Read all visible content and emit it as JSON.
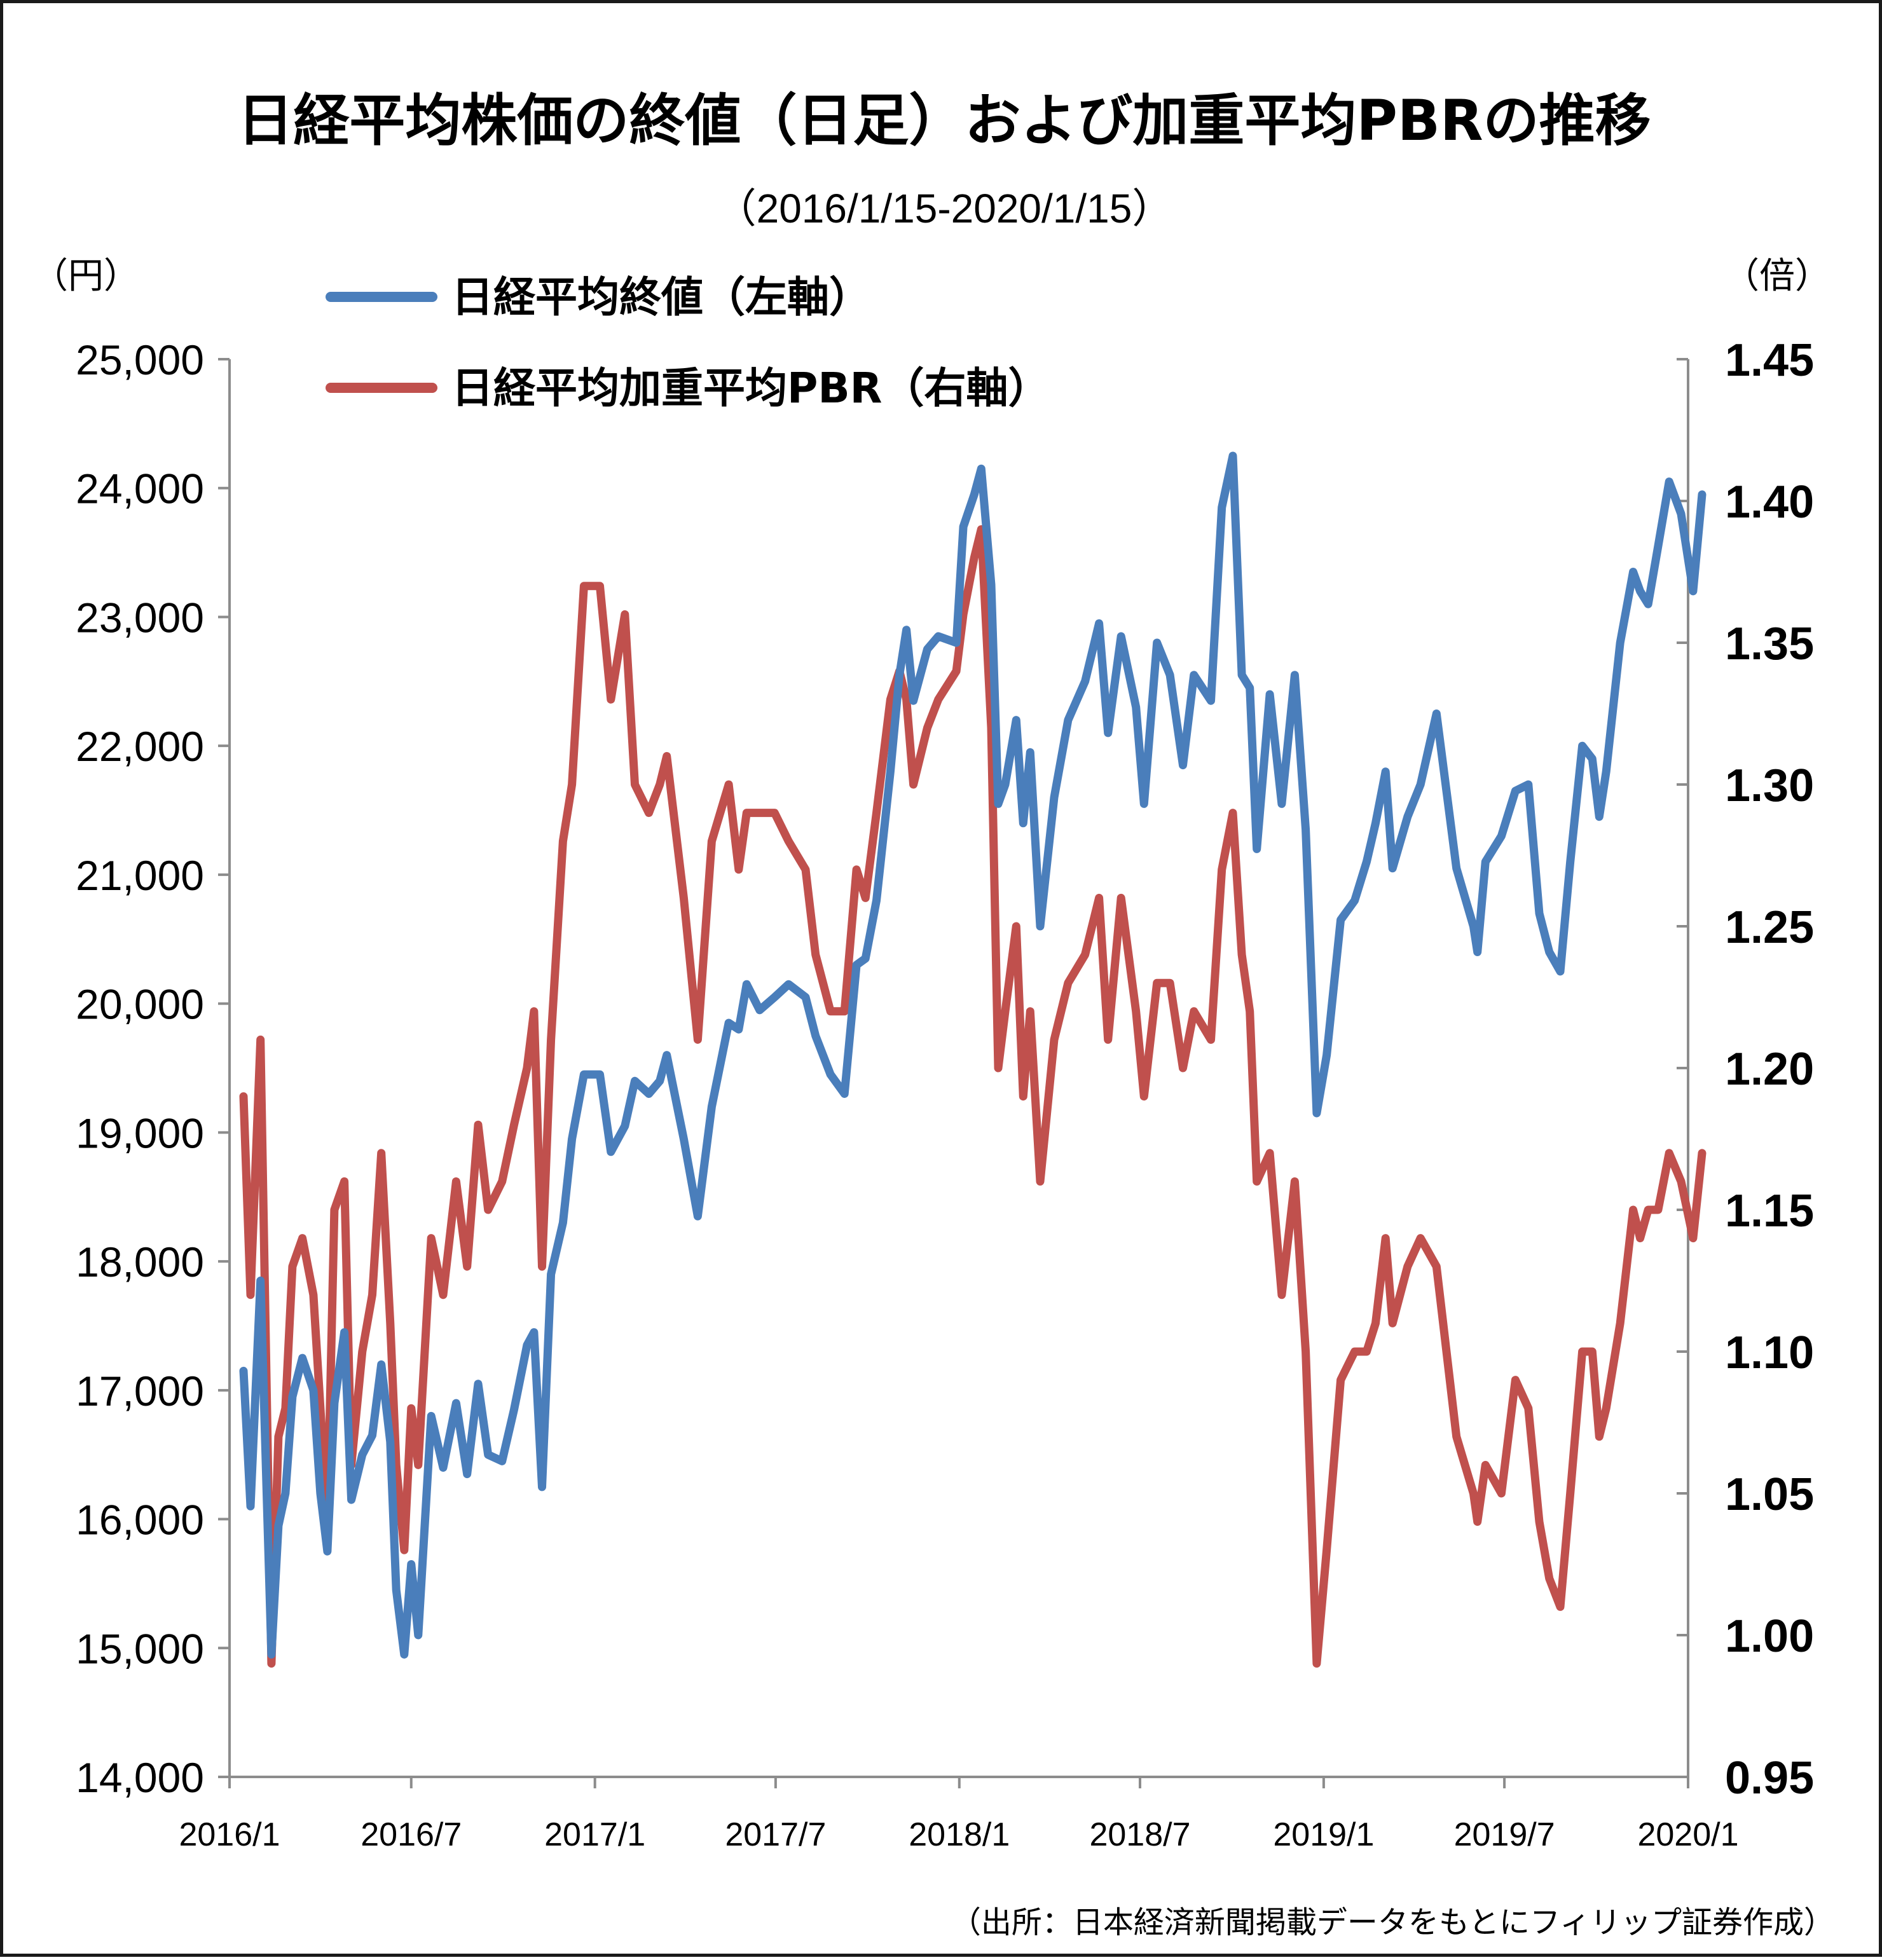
{
  "chart_data": {
    "type": "line",
    "title": "日経平均株価の終値（日足）および加重平均PBRの推移",
    "subtitle": "（2016/1/15-2020/1/15）",
    "source": "（出所：日本経済新聞掲載データをもとにフィリップ証券作成）",
    "y_left": {
      "unit": "（円）",
      "ylim": [
        14000,
        25000
      ],
      "ticks": [
        "14,000",
        "15,000",
        "16,000",
        "17,000",
        "18,000",
        "19,000",
        "20,000",
        "21,000",
        "22,000",
        "23,000",
        "24,000",
        "25,000"
      ]
    },
    "y_right": {
      "unit": "（倍）",
      "ylim": [
        0.95,
        1.45
      ],
      "ticks": [
        "0.95",
        "1.00",
        "1.05",
        "1.10",
        "1.15",
        "1.20",
        "1.25",
        "1.30",
        "1.35",
        "1.40",
        "1.45"
      ]
    },
    "x_axis": {
      "range": [
        "2016-01",
        "2020-01"
      ],
      "ticks": [
        "2016/1",
        "2016/7",
        "2017/1",
        "2017/7",
        "2018/1",
        "2018/7",
        "2019/1",
        "2019/7",
        "2020/1"
      ]
    },
    "grid": false,
    "legend_position": "top-left",
    "series": [
      {
        "name": "日経平均終値（左軸）",
        "color": "#4a7ebb",
        "axis": "left",
        "points": [
          [
            "2016-01-15",
            17150
          ],
          [
            "2016-01-22",
            16100
          ],
          [
            "2016-02-01",
            17850
          ],
          [
            "2016-02-12",
            14950
          ],
          [
            "2016-02-19",
            15950
          ],
          [
            "2016-02-26",
            16200
          ],
          [
            "2016-03-04",
            16950
          ],
          [
            "2016-03-14",
            17250
          ],
          [
            "2016-03-25",
            17000
          ],
          [
            "2016-04-01",
            16200
          ],
          [
            "2016-04-08",
            15750
          ],
          [
            "2016-04-15",
            16900
          ],
          [
            "2016-04-25",
            17450
          ],
          [
            "2016-05-02",
            16150
          ],
          [
            "2016-05-13",
            16500
          ],
          [
            "2016-05-23",
            16650
          ],
          [
            "2016-06-01",
            17200
          ],
          [
            "2016-06-10",
            16600
          ],
          [
            "2016-06-16",
            15450
          ],
          [
            "2016-06-24",
            14950
          ],
          [
            "2016-07-01",
            15650
          ],
          [
            "2016-07-08",
            15100
          ],
          [
            "2016-07-21",
            16800
          ],
          [
            "2016-08-02",
            16400
          ],
          [
            "2016-08-15",
            16900
          ],
          [
            "2016-08-26",
            16350
          ],
          [
            "2016-09-06",
            17050
          ],
          [
            "2016-09-16",
            16500
          ],
          [
            "2016-09-30",
            16450
          ],
          [
            "2016-10-12",
            16850
          ],
          [
            "2016-10-25",
            17350
          ],
          [
            "2016-11-01",
            17450
          ],
          [
            "2016-11-09",
            16250
          ],
          [
            "2016-11-18",
            17900
          ],
          [
            "2016-11-30",
            18300
          ],
          [
            "2016-12-09",
            18950
          ],
          [
            "2016-12-21",
            19450
          ],
          [
            "2017-01-06",
            19450
          ],
          [
            "2017-01-17",
            18850
          ],
          [
            "2017-01-31",
            19050
          ],
          [
            "2017-02-10",
            19400
          ],
          [
            "2017-02-24",
            19300
          ],
          [
            "2017-03-07",
            19400
          ],
          [
            "2017-03-14",
            19600
          ],
          [
            "2017-03-31",
            18950
          ],
          [
            "2017-04-14",
            18350
          ],
          [
            "2017-04-28",
            19200
          ],
          [
            "2017-05-15",
            19850
          ],
          [
            "2017-05-25",
            19800
          ],
          [
            "2017-06-02",
            20150
          ],
          [
            "2017-06-15",
            19950
          ],
          [
            "2017-06-30",
            20050
          ],
          [
            "2017-07-14",
            20150
          ],
          [
            "2017-07-31",
            20050
          ],
          [
            "2017-08-10",
            19750
          ],
          [
            "2017-08-25",
            19450
          ],
          [
            "2017-09-08",
            19300
          ],
          [
            "2017-09-20",
            20300
          ],
          [
            "2017-09-29",
            20350
          ],
          [
            "2017-10-10",
            20800
          ],
          [
            "2017-10-24",
            21800
          ],
          [
            "2017-11-02",
            22550
          ],
          [
            "2017-11-09",
            22900
          ],
          [
            "2017-11-16",
            22350
          ],
          [
            "2017-11-30",
            22750
          ],
          [
            "2017-12-11",
            22850
          ],
          [
            "2017-12-29",
            22800
          ],
          [
            "2018-01-05",
            23700
          ],
          [
            "2018-01-16",
            23950
          ],
          [
            "2018-01-23",
            24150
          ],
          [
            "2018-02-02",
            23250
          ],
          [
            "2018-02-09",
            21550
          ],
          [
            "2018-02-16",
            21700
          ],
          [
            "2018-02-27",
            22200
          ],
          [
            "2018-03-06",
            21400
          ],
          [
            "2018-03-13",
            21950
          ],
          [
            "2018-03-23",
            20600
          ],
          [
            "2018-04-06",
            21600
          ],
          [
            "2018-04-20",
            22200
          ],
          [
            "2018-05-07",
            22500
          ],
          [
            "2018-05-21",
            22950
          ],
          [
            "2018-05-30",
            22100
          ],
          [
            "2018-06-12",
            22850
          ],
          [
            "2018-06-27",
            22300
          ],
          [
            "2018-07-05",
            21550
          ],
          [
            "2018-07-18",
            22800
          ],
          [
            "2018-07-31",
            22550
          ],
          [
            "2018-08-13",
            21850
          ],
          [
            "2018-08-24",
            22550
          ],
          [
            "2018-09-10",
            22350
          ],
          [
            "2018-09-21",
            23850
          ],
          [
            "2018-10-02",
            24250
          ],
          [
            "2018-10-11",
            22550
          ],
          [
            "2018-10-19",
            22450
          ],
          [
            "2018-10-26",
            21200
          ],
          [
            "2018-11-08",
            22400
          ],
          [
            "2018-11-20",
            21550
          ],
          [
            "2018-12-03",
            22550
          ],
          [
            "2018-12-14",
            21350
          ],
          [
            "2018-12-25",
            19150
          ],
          [
            "2019-01-04",
            19600
          ],
          [
            "2019-01-18",
            20650
          ],
          [
            "2019-02-01",
            20800
          ],
          [
            "2019-02-13",
            21100
          ],
          [
            "2019-02-22",
            21400
          ],
          [
            "2019-03-04",
            21800
          ],
          [
            "2019-03-11",
            21050
          ],
          [
            "2019-03-26",
            21450
          ],
          [
            "2019-04-08",
            21700
          ],
          [
            "2019-04-24",
            22250
          ],
          [
            "2019-05-14",
            21050
          ],
          [
            "2019-05-31",
            20600
          ],
          [
            "2019-06-04",
            20400
          ],
          [
            "2019-06-12",
            21100
          ],
          [
            "2019-06-28",
            21300
          ],
          [
            "2019-07-12",
            21650
          ],
          [
            "2019-07-25",
            21700
          ],
          [
            "2019-08-05",
            20700
          ],
          [
            "2019-08-15",
            20400
          ],
          [
            "2019-08-26",
            20250
          ],
          [
            "2019-09-05",
            21100
          ],
          [
            "2019-09-17",
            22000
          ],
          [
            "2019-09-27",
            21900
          ],
          [
            "2019-10-04",
            21450
          ],
          [
            "2019-10-11",
            21800
          ],
          [
            "2019-10-25",
            22800
          ],
          [
            "2019-11-07",
            23350
          ],
          [
            "2019-11-14",
            23200
          ],
          [
            "2019-11-22",
            23100
          ],
          [
            "2019-12-02",
            23550
          ],
          [
            "2019-12-13",
            24050
          ],
          [
            "2019-12-25",
            23800
          ],
          [
            "2020-01-06",
            23200
          ],
          [
            "2020-01-15",
            23950
          ]
        ]
      },
      {
        "name": "日経平均加重平均PBR（右軸）",
        "color": "#c0504d",
        "axis": "right",
        "points": [
          [
            "2016-01-15",
            1.19
          ],
          [
            "2016-01-22",
            1.12
          ],
          [
            "2016-02-01",
            1.21
          ],
          [
            "2016-02-12",
            0.99
          ],
          [
            "2016-02-19",
            1.07
          ],
          [
            "2016-02-26",
            1.08
          ],
          [
            "2016-03-04",
            1.13
          ],
          [
            "2016-03-14",
            1.14
          ],
          [
            "2016-03-25",
            1.12
          ],
          [
            "2016-04-01",
            1.08
          ],
          [
            "2016-04-08",
            1.04
          ],
          [
            "2016-04-15",
            1.15
          ],
          [
            "2016-04-25",
            1.16
          ],
          [
            "2016-05-02",
            1.06
          ],
          [
            "2016-05-13",
            1.1
          ],
          [
            "2016-05-23",
            1.12
          ],
          [
            "2016-06-01",
            1.17
          ],
          [
            "2016-06-10",
            1.11
          ],
          [
            "2016-06-16",
            1.06
          ],
          [
            "2016-06-24",
            1.03
          ],
          [
            "2016-07-01",
            1.08
          ],
          [
            "2016-07-08",
            1.06
          ],
          [
            "2016-07-21",
            1.14
          ],
          [
            "2016-08-02",
            1.12
          ],
          [
            "2016-08-15",
            1.16
          ],
          [
            "2016-08-26",
            1.13
          ],
          [
            "2016-09-06",
            1.18
          ],
          [
            "2016-09-16",
            1.15
          ],
          [
            "2016-09-30",
            1.16
          ],
          [
            "2016-10-12",
            1.18
          ],
          [
            "2016-10-25",
            1.2
          ],
          [
            "2016-11-01",
            1.22
          ],
          [
            "2016-11-09",
            1.13
          ],
          [
            "2016-11-18",
            1.21
          ],
          [
            "2016-11-30",
            1.28
          ],
          [
            "2016-12-09",
            1.3
          ],
          [
            "2016-12-21",
            1.37
          ],
          [
            "2017-01-06",
            1.37
          ],
          [
            "2017-01-17",
            1.33
          ],
          [
            "2017-01-31",
            1.36
          ],
          [
            "2017-02-10",
            1.3
          ],
          [
            "2017-02-24",
            1.29
          ],
          [
            "2017-03-07",
            1.3
          ],
          [
            "2017-03-14",
            1.31
          ],
          [
            "2017-03-31",
            1.26
          ],
          [
            "2017-04-14",
            1.21
          ],
          [
            "2017-04-28",
            1.28
          ],
          [
            "2017-05-15",
            1.3
          ],
          [
            "2017-05-25",
            1.27
          ],
          [
            "2017-06-02",
            1.29
          ],
          [
            "2017-06-15",
            1.29
          ],
          [
            "2017-06-30",
            1.29
          ],
          [
            "2017-07-14",
            1.28
          ],
          [
            "2017-07-31",
            1.27
          ],
          [
            "2017-08-10",
            1.24
          ],
          [
            "2017-08-25",
            1.22
          ],
          [
            "2017-09-08",
            1.22
          ],
          [
            "2017-09-20",
            1.27
          ],
          [
            "2017-09-29",
            1.26
          ],
          [
            "2017-10-10",
            1.29
          ],
          [
            "2017-10-24",
            1.33
          ],
          [
            "2017-11-02",
            1.34
          ],
          [
            "2017-11-09",
            1.33
          ],
          [
            "2017-11-16",
            1.3
          ],
          [
            "2017-11-30",
            1.32
          ],
          [
            "2017-12-11",
            1.33
          ],
          [
            "2017-12-29",
            1.34
          ],
          [
            "2018-01-05",
            1.36
          ],
          [
            "2018-01-16",
            1.38
          ],
          [
            "2018-01-23",
            1.39
          ],
          [
            "2018-02-02",
            1.32
          ],
          [
            "2018-02-09",
            1.2
          ],
          [
            "2018-02-16",
            1.22
          ],
          [
            "2018-02-27",
            1.25
          ],
          [
            "2018-03-06",
            1.19
          ],
          [
            "2018-03-13",
            1.22
          ],
          [
            "2018-03-23",
            1.16
          ],
          [
            "2018-04-06",
            1.21
          ],
          [
            "2018-04-20",
            1.23
          ],
          [
            "2018-05-07",
            1.24
          ],
          [
            "2018-05-21",
            1.26
          ],
          [
            "2018-05-30",
            1.21
          ],
          [
            "2018-06-12",
            1.26
          ],
          [
            "2018-06-27",
            1.22
          ],
          [
            "2018-07-05",
            1.19
          ],
          [
            "2018-07-18",
            1.23
          ],
          [
            "2018-07-31",
            1.23
          ],
          [
            "2018-08-13",
            1.2
          ],
          [
            "2018-08-24",
            1.22
          ],
          [
            "2018-09-10",
            1.21
          ],
          [
            "2018-09-21",
            1.27
          ],
          [
            "2018-10-02",
            1.29
          ],
          [
            "2018-10-11",
            1.24
          ],
          [
            "2018-10-19",
            1.22
          ],
          [
            "2018-10-26",
            1.16
          ],
          [
            "2018-11-08",
            1.17
          ],
          [
            "2018-11-20",
            1.12
          ],
          [
            "2018-12-03",
            1.16
          ],
          [
            "2018-12-14",
            1.1
          ],
          [
            "2018-12-25",
            0.99
          ],
          [
            "2019-01-04",
            1.03
          ],
          [
            "2019-01-18",
            1.09
          ],
          [
            "2019-02-01",
            1.1
          ],
          [
            "2019-02-13",
            1.1
          ],
          [
            "2019-02-22",
            1.11
          ],
          [
            "2019-03-04",
            1.14
          ],
          [
            "2019-03-11",
            1.11
          ],
          [
            "2019-03-26",
            1.13
          ],
          [
            "2019-04-08",
            1.14
          ],
          [
            "2019-04-24",
            1.13
          ],
          [
            "2019-05-14",
            1.07
          ],
          [
            "2019-05-31",
            1.05
          ],
          [
            "2019-06-04",
            1.04
          ],
          [
            "2019-06-12",
            1.06
          ],
          [
            "2019-06-28",
            1.05
          ],
          [
            "2019-07-12",
            1.09
          ],
          [
            "2019-07-25",
            1.08
          ],
          [
            "2019-08-05",
            1.04
          ],
          [
            "2019-08-15",
            1.02
          ],
          [
            "2019-08-26",
            1.01
          ],
          [
            "2019-09-05",
            1.05
          ],
          [
            "2019-09-17",
            1.1
          ],
          [
            "2019-09-27",
            1.1
          ],
          [
            "2019-10-04",
            1.07
          ],
          [
            "2019-10-11",
            1.08
          ],
          [
            "2019-10-25",
            1.11
          ],
          [
            "2019-11-07",
            1.15
          ],
          [
            "2019-11-14",
            1.14
          ],
          [
            "2019-11-22",
            1.15
          ],
          [
            "2019-12-02",
            1.15
          ],
          [
            "2019-12-13",
            1.17
          ],
          [
            "2019-12-25",
            1.16
          ],
          [
            "2020-01-06",
            1.14
          ],
          [
            "2020-01-15",
            1.17
          ]
        ]
      }
    ]
  }
}
